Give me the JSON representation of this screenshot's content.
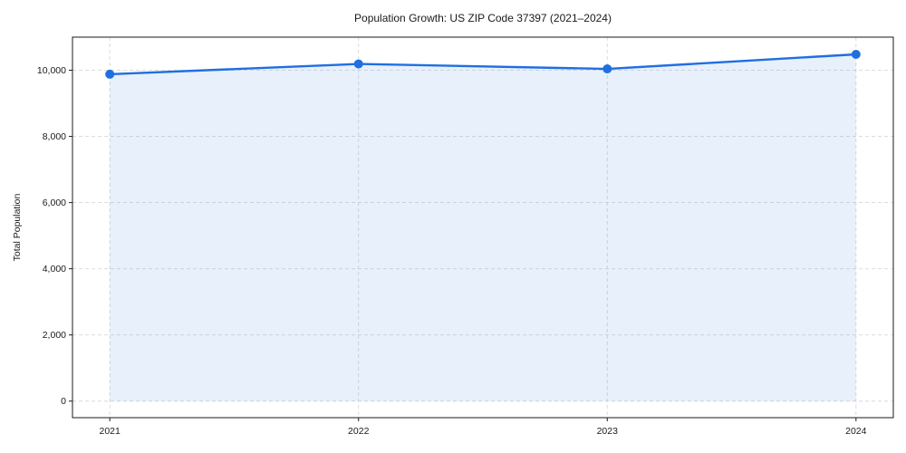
{
  "chart_data": {
    "type": "line",
    "title": "Population Growth: US ZIP Code 37397 (2021–2024)",
    "xlabel": "",
    "ylabel": "Total Population",
    "x": [
      2021,
      2022,
      2023,
      2024
    ],
    "x_tick_labels": [
      "2021",
      "2022",
      "2023",
      "2024"
    ],
    "series": [
      {
        "name": "Total Population",
        "values": [
          9880,
          10190,
          10040,
          10480
        ]
      }
    ],
    "y_ticks": [
      0,
      2000,
      4000,
      6000,
      8000,
      10000
    ],
    "y_tick_labels": [
      "0",
      "2,000",
      "4,000",
      "6,000",
      "8,000",
      "10,000"
    ],
    "xlim": [
      2020.85,
      2024.15
    ],
    "ylim": [
      -500,
      11000
    ],
    "grid": true,
    "grid_style": "dashed",
    "legend_position": "none",
    "area_fill_to": 0,
    "marker": "circle",
    "colors": {
      "line": "#1f6fe0",
      "marker": "#1f6fe0",
      "fill": "rgba(31,111,224,0.10)",
      "grid": "#d8d8d8",
      "spine": "#1a1a1a",
      "text": "#1a1a1a",
      "background": "#ffffff"
    }
  }
}
